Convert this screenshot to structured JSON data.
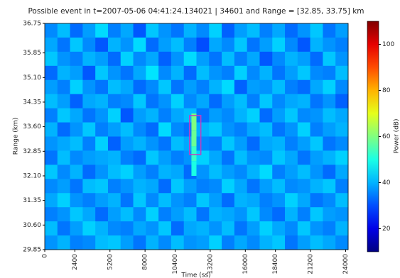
{
  "chart_data": {
    "type": "heatmap",
    "title": "Possible event in t=2007-05-06 04:41:24.134021 | 34601 and Range = [32.85, 33.75] km",
    "xlabel": "Time (ss)",
    "ylabel": "Range (km)",
    "colorbar_label": "Power (dB)",
    "colormap": "jet",
    "xlim": [
      0,
      24200
    ],
    "ylim": [
      29.85,
      36.75
    ],
    "clim": [
      10,
      110
    ],
    "xticks": [
      0,
      2400,
      5200,
      8000,
      10400,
      13200,
      16000,
      18400,
      21200,
      24000
    ],
    "yticks": [
      29.85,
      {
        "value": 30.6,
        "label": "30.60"
      },
      31.35,
      {
        "value": 32.1,
        "label": "32.10"
      },
      32.85,
      {
        "value": 33.6,
        "label": "33.60"
      },
      34.35,
      {
        "value": 35.1,
        "label": "35.10"
      },
      35.85,
      36.75
    ],
    "cticks": [
      20,
      40,
      60,
      80,
      100
    ],
    "z": [
      [
        36,
        41,
        33,
        38,
        44,
        35,
        39,
        31,
        42,
        37,
        34,
        40,
        36,
        43,
        32,
        38,
        41,
        35,
        39,
        33,
        37,
        42,
        34,
        38
      ],
      [
        39,
        34,
        42,
        36,
        31,
        40,
        37,
        44,
        33,
        38,
        41,
        35,
        30,
        39,
        36,
        42,
        34,
        38,
        43,
        36,
        31,
        40,
        37,
        35
      ],
      [
        42,
        37,
        35,
        40,
        38,
        33,
        43,
        36,
        39,
        32,
        37,
        44,
        38,
        34,
        41,
        35,
        39,
        31,
        36,
        40,
        38,
        33,
        42,
        37
      ],
      [
        33,
        40,
        38,
        31,
        42,
        37,
        34,
        39,
        45,
        36,
        40,
        33,
        41,
        37,
        35,
        43,
        36,
        40,
        34,
        38,
        42,
        36,
        35,
        41
      ],
      [
        38,
        35,
        43,
        37,
        34,
        41,
        39,
        33,
        36,
        42,
        34,
        38,
        35,
        40,
        44,
        32,
        38,
        37,
        41,
        35,
        33,
        39,
        43,
        36
      ],
      [
        41,
        38,
        32,
        39,
        40,
        35,
        36,
        42,
        34,
        37,
        43,
        36,
        39,
        33,
        38,
        41,
        35,
        42,
        36,
        39,
        40,
        34,
        37,
        32
      ],
      [
        35,
        42,
        39,
        34,
        37,
        43,
        31,
        38,
        40,
        35,
        39,
        41,
        34,
        38,
        36,
        40,
        43,
        33,
        38,
        42,
        36,
        37,
        41,
        39
      ],
      [
        40,
        33,
        37,
        42,
        35,
        38,
        41,
        36,
        33,
        44,
        36,
        34,
        40,
        42,
        37,
        35,
        39,
        41,
        34,
        37,
        43,
        35,
        38,
        40
      ],
      [
        37,
        39,
        41,
        35,
        43,
        32,
        38,
        40,
        37,
        34,
        41,
        39,
        36,
        35,
        42,
        38,
        33,
        39,
        40,
        35,
        38,
        42,
        34,
        36
      ],
      [
        34,
        41,
        36,
        38,
        39,
        40,
        35,
        33,
        42,
        38,
        35,
        37,
        43,
        39,
        34,
        41,
        37,
        36,
        42,
        39,
        34,
        38,
        40,
        43
      ],
      [
        42,
        36,
        40,
        33,
        37,
        41,
        43,
        38,
        35,
        40,
        39,
        33,
        37,
        41,
        38,
        36,
        40,
        44,
        35,
        38,
        41,
        37,
        33,
        39
      ],
      [
        36,
        38,
        34,
        41,
        42,
        35,
        37,
        40,
        39,
        33,
        42,
        38,
        35,
        36,
        43,
        39,
        34,
        38,
        41,
        36,
        37,
        40,
        42,
        35
      ],
      [
        39,
        43,
        37,
        35,
        38,
        40,
        34,
        42,
        36,
        41,
        37,
        35,
        42,
        38,
        33,
        40,
        39,
        35,
        37,
        43,
        39,
        34,
        36,
        41
      ],
      [
        35,
        37,
        42,
        39,
        33,
        38,
        41,
        36,
        43,
        35,
        38,
        41,
        34,
        40,
        39,
        37,
        42,
        36,
        33,
        40,
        35,
        42,
        38,
        37
      ],
      [
        41,
        34,
        38,
        43,
        40,
        36,
        35,
        39,
        37,
        42,
        33,
        39,
        40,
        37,
        41,
        34,
        38,
        43,
        39,
        36,
        42,
        37,
        35,
        40
      ],
      [
        37,
        40,
        35,
        36,
        41,
        42,
        38,
        34,
        40,
        36,
        41,
        37,
        38,
        43,
        35,
        39,
        36,
        40,
        42,
        34,
        38,
        41,
        39,
        36
      ]
    ],
    "event": {
      "x": [
        11700,
        12100
      ],
      "y_edges": [
        32.1,
        32.55,
        33.0,
        33.5,
        34.0
      ],
      "values": [
        50,
        53,
        58,
        60
      ]
    },
    "box": {
      "x": [
        11550,
        12450
      ],
      "y": [
        32.75,
        33.94
      ],
      "color": "#c040c0"
    }
  }
}
